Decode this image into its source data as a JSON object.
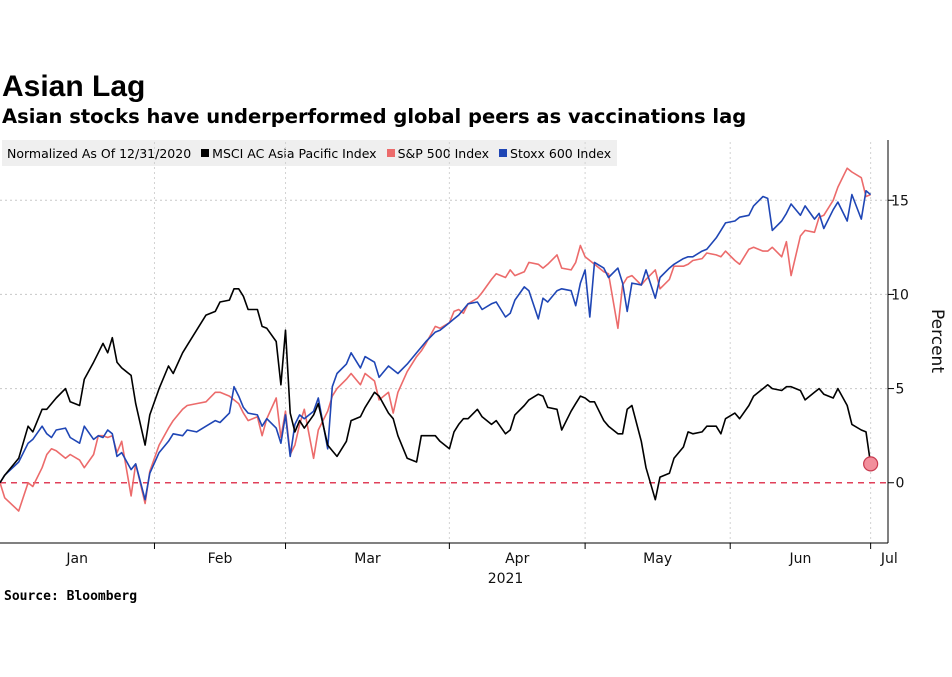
{
  "title": "Asian Lag",
  "subtitle": "Asian stocks have underperformed global peers as vaccinations lag",
  "source": "Source: Bloomberg",
  "chart_data": {
    "type": "line",
    "legend_header": "Normalized As Of 12/31/2020",
    "ylabel": "Percent",
    "ylim": [
      -3.2,
      18.2
    ],
    "yticks": [
      "15",
      "10",
      "5",
      "0"
    ],
    "ytick_values": [
      15,
      10,
      5,
      0
    ],
    "xlim": [
      0,
      188
    ],
    "month_labels": [
      "Jan",
      "Feb",
      "Mar",
      "Apr",
      "May",
      "Jun",
      "Jul"
    ],
    "month_label_days": [
      16,
      50,
      86,
      126,
      156,
      188,
      222
    ],
    "month_boundaries": [
      33,
      61,
      96,
      125,
      156,
      186
    ],
    "year_label": "2021",
    "grid": true,
    "zero_line_color": "#e0405a",
    "end_marker": {
      "series": "MSCI AC Asia Pacific Index",
      "x": 186,
      "y": 1.0
    },
    "x": [
      0,
      1,
      4,
      6,
      7,
      9,
      10,
      11,
      12,
      14,
      15,
      17,
      18,
      20,
      21,
      22,
      23,
      24,
      25,
      26,
      28,
      29,
      31,
      32,
      34,
      36,
      37,
      39,
      40,
      42,
      44,
      46,
      47,
      49,
      50,
      51,
      52,
      53,
      55,
      56,
      57,
      59,
      60,
      61,
      62,
      63,
      64,
      65,
      67,
      68,
      70,
      71,
      72,
      74,
      75,
      77,
      78,
      80,
      81,
      83,
      84,
      85,
      87,
      89,
      90,
      91,
      93,
      94,
      96,
      97,
      98,
      99,
      100,
      102,
      103,
      105,
      106,
      108,
      109,
      110,
      112,
      113,
      115,
      116,
      117,
      119,
      120,
      122,
      123,
      124,
      125,
      126,
      127,
      129,
      130,
      132,
      133,
      134,
      135,
      137,
      138,
      140,
      141,
      143,
      144,
      146,
      147,
      148,
      150,
      151,
      153,
      154,
      155,
      157,
      158,
      160,
      161,
      163,
      164,
      165,
      167,
      168,
      169,
      171,
      172,
      174,
      175,
      176,
      178,
      179,
      181,
      182,
      184,
      185,
      186
    ],
    "series": [
      {
        "name": "MSCI AC Asia Pacific Index",
        "color": "#000000",
        "values": [
          0.0,
          0.4,
          1.3,
          3.0,
          2.7,
          3.9,
          3.9,
          4.2,
          4.5,
          5.0,
          4.3,
          4.1,
          5.5,
          6.4,
          6.9,
          7.4,
          6.9,
          7.7,
          6.4,
          6.1,
          5.7,
          4.2,
          2.0,
          3.6,
          5.0,
          6.2,
          5.8,
          6.9,
          7.3,
          8.1,
          8.9,
          9.1,
          9.6,
          9.7,
          10.3,
          10.3,
          9.9,
          9.2,
          9.2,
          8.3,
          8.2,
          7.5,
          5.2,
          8.1,
          3.7,
          2.7,
          3.3,
          2.9,
          3.6,
          4.2,
          2.0,
          1.7,
          1.4,
          2.2,
          3.3,
          3.5,
          4.0,
          4.8,
          4.6,
          3.7,
          3.4,
          2.5,
          1.3,
          1.1,
          2.5,
          2.5,
          2.5,
          2.2,
          1.8,
          2.7,
          3.1,
          3.4,
          3.4,
          3.9,
          3.5,
          3.1,
          3.3,
          2.6,
          2.8,
          3.6,
          4.1,
          4.4,
          4.7,
          4.6,
          4.0,
          3.9,
          2.8,
          3.8,
          4.2,
          4.6,
          4.5,
          4.3,
          4.3,
          3.3,
          3.0,
          2.6,
          2.6,
          3.9,
          4.1,
          2.2,
          0.8,
          -0.9,
          0.3,
          0.5,
          1.3,
          1.9,
          2.7,
          2.6,
          2.7,
          3.0,
          3.0,
          2.6,
          3.4,
          3.7,
          3.4,
          4.1,
          4.6,
          5.0,
          5.2,
          5.0,
          4.9,
          5.1,
          5.1,
          4.9,
          4.4,
          4.8,
          5.0,
          4.7,
          4.5,
          5.0,
          4.1,
          3.1,
          2.8,
          2.7,
          1.0
        ]
      },
      {
        "name": "S&P 500 Index",
        "color": "#ec6b6b",
        "values": [
          0.0,
          -0.8,
          -1.5,
          0.0,
          -0.2,
          0.8,
          1.5,
          1.8,
          1.7,
          1.3,
          1.5,
          1.2,
          0.8,
          1.5,
          2.5,
          2.5,
          2.4,
          2.5,
          1.6,
          2.2,
          -0.7,
          1.0,
          -1.1,
          0.6,
          2.0,
          2.9,
          3.3,
          3.9,
          4.1,
          4.2,
          4.3,
          4.8,
          4.8,
          4.6,
          4.4,
          4.2,
          3.7,
          3.3,
          3.5,
          2.5,
          3.4,
          4.5,
          2.4,
          3.8,
          1.5,
          2.0,
          3.1,
          3.9,
          1.3,
          2.8,
          3.8,
          4.6,
          5.0,
          5.5,
          5.8,
          5.2,
          5.8,
          5.4,
          4.4,
          4.8,
          3.7,
          4.8,
          5.9,
          6.7,
          7.0,
          7.4,
          8.3,
          8.2,
          8.5,
          9.1,
          9.2,
          9.0,
          9.5,
          9.8,
          10.1,
          10.8,
          11.1,
          10.9,
          11.3,
          11.0,
          11.2,
          11.7,
          11.6,
          11.4,
          11.6,
          12.1,
          11.4,
          11.3,
          11.7,
          12.6,
          12.0,
          11.8,
          11.6,
          11.2,
          11.1,
          8.2,
          10.5,
          10.9,
          11.0,
          10.5,
          10.8,
          11.3,
          10.3,
          10.8,
          11.5,
          11.5,
          11.6,
          11.8,
          11.9,
          12.2,
          12.1,
          12.0,
          12.3,
          11.8,
          11.6,
          12.4,
          12.5,
          12.3,
          12.3,
          12.5,
          12.0,
          12.8,
          11.0,
          13.1,
          13.4,
          13.3,
          14.1,
          14.2,
          15.0,
          15.7,
          16.7,
          16.5,
          16.2,
          15.2,
          15.3
        ]
      },
      {
        "name": "Stoxx 600 Index",
        "color": "#1f46b5",
        "values": [
          0.0,
          0.4,
          1.1,
          2.1,
          2.3,
          3.0,
          2.6,
          2.4,
          2.8,
          2.9,
          2.4,
          2.1,
          3.0,
          2.3,
          2.5,
          2.4,
          2.8,
          2.6,
          1.4,
          1.6,
          0.7,
          1.0,
          -0.9,
          0.5,
          1.6,
          2.2,
          2.6,
          2.5,
          2.8,
          2.7,
          3.0,
          3.3,
          3.2,
          3.7,
          5.1,
          4.6,
          4.0,
          3.7,
          3.6,
          3.0,
          3.4,
          2.9,
          2.1,
          3.6,
          1.4,
          3.1,
          3.6,
          3.4,
          3.8,
          4.5,
          1.8,
          5.1,
          5.8,
          6.3,
          6.9,
          6.1,
          6.7,
          6.4,
          5.6,
          6.2,
          6.0,
          5.8,
          6.3,
          6.9,
          7.2,
          7.5,
          8.0,
          8.1,
          8.5,
          8.7,
          8.9,
          9.2,
          9.5,
          9.6,
          9.2,
          9.5,
          9.6,
          8.8,
          9.0,
          9.7,
          10.4,
          10.2,
          8.7,
          9.8,
          9.6,
          10.2,
          10.3,
          10.2,
          9.4,
          10.6,
          11.3,
          8.8,
          11.7,
          11.4,
          10.9,
          11.4,
          10.6,
          9.1,
          10.6,
          10.5,
          11.3,
          9.8,
          10.9,
          11.4,
          11.6,
          11.9,
          12.0,
          12.0,
          12.3,
          12.4,
          13.0,
          13.4,
          13.8,
          13.9,
          14.1,
          14.2,
          14.7,
          15.2,
          15.1,
          13.4,
          13.9,
          14.3,
          14.8,
          14.2,
          14.7,
          14.0,
          14.3,
          13.5,
          14.5,
          14.9,
          13.9,
          15.3,
          14.0,
          15.5,
          15.3
        ]
      }
    ]
  }
}
